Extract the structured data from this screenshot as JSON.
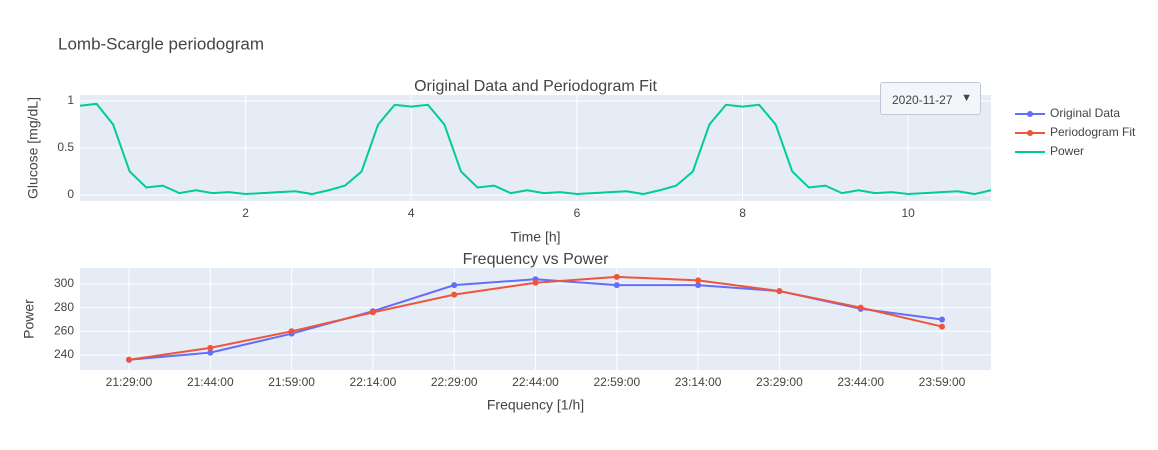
{
  "title": "Lomb-Scargle periodogram",
  "dropdown": {
    "selected": "2020-11-27"
  },
  "chart_data": [
    {
      "type": "line",
      "title": "Original Data and Periodogram Fit",
      "xlabel": "Time [h]",
      "ylabel": "Glucose [mg/dL]",
      "x": [
        0,
        0.2,
        0.4,
        0.6,
        0.8,
        1.0,
        1.2,
        1.4,
        1.6,
        1.8,
        2.0,
        2.2,
        2.4,
        2.6,
        2.8,
        3.0,
        3.2,
        3.4,
        3.6,
        3.8,
        4.0,
        4.2,
        4.4,
        4.6,
        4.8,
        5.0,
        5.2,
        5.4,
        5.6,
        5.8,
        6.0,
        6.2,
        6.4,
        6.6,
        6.8,
        7.0,
        7.2,
        7.4,
        7.6,
        7.8,
        8.0,
        8.2,
        8.4,
        8.6,
        8.8,
        9.0,
        9.2,
        9.4,
        9.6,
        9.8,
        10.0,
        10.2,
        10.4,
        10.6,
        10.8,
        11.0
      ],
      "series": [
        {
          "name": "Power",
          "color": "#00cc96",
          "values": [
            0.95,
            0.97,
            0.75,
            0.25,
            0.08,
            0.1,
            0.02,
            0.05,
            0.02,
            0.03,
            0.01,
            0.02,
            0.03,
            0.04,
            0.01,
            0.05,
            0.1,
            0.25,
            0.75,
            0.96,
            0.94,
            0.96,
            0.75,
            0.25,
            0.08,
            0.1,
            0.02,
            0.05,
            0.02,
            0.03,
            0.01,
            0.02,
            0.03,
            0.04,
            0.01,
            0.05,
            0.1,
            0.25,
            0.75,
            0.96,
            0.94,
            0.96,
            0.75,
            0.25,
            0.08,
            0.1,
            0.02,
            0.05,
            0.02,
            0.03,
            0.01,
            0.02,
            0.03,
            0.04,
            0.01,
            0.05
          ]
        }
      ],
      "xlim": [
        0,
        11
      ],
      "xticks": [
        2,
        4,
        6,
        8,
        10
      ],
      "ylim": [
        -0.064,
        1.064
      ],
      "yticks": [
        0,
        0.5,
        1
      ],
      "grid": true
    },
    {
      "type": "line",
      "title": "Frequency vs Power",
      "xlabel": "Frequency [1/h]",
      "ylabel": "Power",
      "markers": true,
      "categories": [
        "21:29:00",
        "21:44:00",
        "21:59:00",
        "22:14:00",
        "22:29:00",
        "22:44:00",
        "22:59:00",
        "23:14:00",
        "23:29:00",
        "23:44:00",
        "23:59:00"
      ],
      "series": [
        {
          "name": "Original Data",
          "color": "#636efa",
          "values": [
            236,
            242,
            258,
            277,
            299,
            304,
            299,
            299,
            294,
            279,
            270
          ]
        },
        {
          "name": "Periodogram Fit",
          "color": "#ef553b",
          "values": [
            236,
            246,
            260,
            276,
            291,
            301,
            306,
            303,
            294,
            280,
            264
          ]
        }
      ],
      "ylim": [
        227.3,
        313.5
      ],
      "yticks": [
        240,
        260,
        280,
        300
      ],
      "grid": true
    }
  ]
}
